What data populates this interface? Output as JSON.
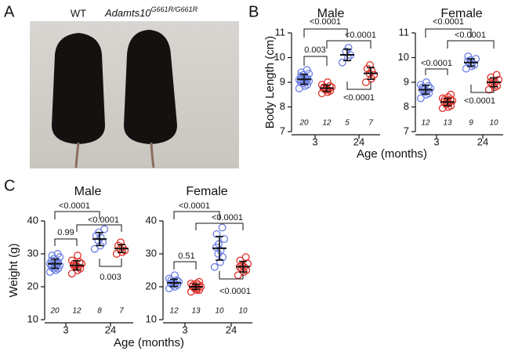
{
  "figure": {
    "panel_labels": [
      "A",
      "B",
      "C"
    ],
    "photo_labels": {
      "wt": "WT",
      "mutant": "Adamts10",
      "mutant_superscript": "G661R/G661R"
    }
  },
  "chart_data": [
    {
      "type": "dot",
      "title": "Male",
      "ylabel": "Body Length (cm)",
      "xlabel": "Age (months)",
      "ylim": [
        7,
        11
      ],
      "yticks": [
        7,
        8,
        9,
        10,
        11
      ],
      "categories": [
        {
          "label": "3",
          "groups": [
            {
              "color": "#6b7fe3",
              "n": 20,
              "mean": 9.12,
              "sd": 0.2,
              "values": [
                8.75,
                8.85,
                8.9,
                8.95,
                9.0,
                9.0,
                9.05,
                9.05,
                9.1,
                9.1,
                9.1,
                9.15,
                9.15,
                9.2,
                9.2,
                9.25,
                9.3,
                9.35,
                9.4,
                9.5
              ]
            },
            {
              "color": "#e0302a",
              "n": 12,
              "mean": 8.76,
              "sd": 0.13,
              "values": [
                8.55,
                8.6,
                8.65,
                8.7,
                8.7,
                8.75,
                8.75,
                8.8,
                8.8,
                8.85,
                8.9,
                9.0
              ]
            }
          ]
        },
        {
          "label": "24",
          "groups": [
            {
              "color": "#6b7fe3",
              "n": 5,
              "mean": 10.11,
              "sd": 0.23,
              "values": [
                9.8,
                10.0,
                10.1,
                10.25,
                10.4
              ]
            },
            {
              "color": "#e0302a",
              "n": 7,
              "mean": 9.36,
              "sd": 0.24,
              "values": [
                9.0,
                9.15,
                9.3,
                9.35,
                9.45,
                9.55,
                9.7
              ]
            }
          ]
        }
      ],
      "comparisons": [
        "<0.0001",
        "0.003",
        "<0.0001",
        "<0.0001"
      ]
    },
    {
      "type": "dot",
      "title": "Female",
      "ylim": [
        7,
        11
      ],
      "yticks": [
        7,
        8,
        9,
        10,
        11
      ],
      "categories": [
        {
          "label": "3",
          "groups": [
            {
              "color": "#6b7fe3",
              "n": 12,
              "mean": 8.7,
              "sd": 0.18,
              "values": [
                8.35,
                8.5,
                8.55,
                8.6,
                8.65,
                8.7,
                8.7,
                8.75,
                8.8,
                8.85,
                8.9,
                9.0
              ]
            },
            {
              "color": "#e0302a",
              "n": 13,
              "mean": 8.2,
              "sd": 0.15,
              "values": [
                7.95,
                8.0,
                8.05,
                8.1,
                8.15,
                8.2,
                8.2,
                8.25,
                8.3,
                8.3,
                8.35,
                8.4,
                8.5
              ]
            }
          ]
        },
        {
          "label": "24",
          "groups": [
            {
              "color": "#6b7fe3",
              "n": 9,
              "mean": 9.8,
              "sd": 0.15,
              "values": [
                9.55,
                9.65,
                9.7,
                9.75,
                9.8,
                9.85,
                9.9,
                9.95,
                10.05
              ]
            },
            {
              "color": "#e0302a",
              "n": 10,
              "mean": 9.0,
              "sd": 0.18,
              "values": [
                8.7,
                8.8,
                8.85,
                8.9,
                9.0,
                9.0,
                9.05,
                9.1,
                9.2,
                9.3
              ]
            }
          ]
        }
      ],
      "comparisons": [
        "<0.0001",
        "<0.0001",
        "<0.0001",
        "<0.0001"
      ]
    },
    {
      "type": "dot",
      "title": "Male",
      "ylabel": "Weight (g)",
      "xlabel": "Age (months)",
      "ylim": [
        10,
        40
      ],
      "yticks": [
        10,
        20,
        30,
        40
      ],
      "categories": [
        {
          "label": "3",
          "groups": [
            {
              "color": "#6b7fe3",
              "n": 20,
              "mean": 27,
              "sd": 1.4,
              "values": [
                24.5,
                25,
                25.5,
                25.5,
                26,
                26,
                26.5,
                26.5,
                26.5,
                27,
                27,
                27,
                27.5,
                27.5,
                28,
                28,
                28.5,
                29,
                29.5,
                30
              ]
            },
            {
              "color": "#e0302a",
              "n": 12,
              "mean": 26.5,
              "sd": 1.4,
              "values": [
                24,
                25,
                25.5,
                26,
                26,
                26.5,
                26.5,
                27,
                27,
                27.5,
                28,
                29.5
              ]
            }
          ]
        },
        {
          "label": "24",
          "groups": [
            {
              "color": "#6b7fe3",
              "n": 8,
              "mean": 34.5,
              "sd": 2,
              "values": [
                31.5,
                32.5,
                33.5,
                34,
                35,
                35.5,
                36.5,
                37.5
              ]
            },
            {
              "color": "#e0302a",
              "n": 7,
              "mean": 31.6,
              "sd": 1.2,
              "values": [
                30,
                30.5,
                31,
                31.5,
                32,
                32.5,
                33.5
              ]
            }
          ]
        }
      ],
      "comparisons": [
        "<0.0001",
        "0.99",
        "<0.0001",
        "0.003"
      ]
    },
    {
      "type": "dot",
      "title": "Female",
      "ylim": [
        10,
        40
      ],
      "yticks": [
        10,
        20,
        30,
        40
      ],
      "categories": [
        {
          "label": "3",
          "groups": [
            {
              "color": "#6b7fe3",
              "n": 12,
              "mean": 21.2,
              "sd": 1.1,
              "values": [
                19.5,
                20,
                20.5,
                20.5,
                21,
                21,
                21.5,
                21.5,
                22,
                22,
                22.5,
                23.5
              ]
            },
            {
              "color": "#e0302a",
              "n": 13,
              "mean": 20,
              "sd": 0.8,
              "values": [
                18.5,
                19,
                19,
                19.5,
                19.5,
                20,
                20,
                20,
                20.5,
                20.5,
                21,
                21,
                21.5
              ]
            }
          ]
        },
        {
          "label": "24",
          "groups": [
            {
              "color": "#6b7fe3",
              "n": 10,
              "mean": 31.7,
              "sd": 3.6,
              "values": [
                26,
                27.5,
                29,
                30,
                31,
                32,
                33,
                34.5,
                36,
                38
              ]
            },
            {
              "color": "#e0302a",
              "n": 10,
              "mean": 26.1,
              "sd": 1.6,
              "values": [
                23.5,
                24.5,
                25,
                25.5,
                26,
                26,
                26.5,
                27,
                28,
                29
              ]
            }
          ]
        }
      ],
      "comparisons": [
        "<0.0001",
        "0.51",
        "<0.0001",
        "<0.0001"
      ]
    }
  ]
}
